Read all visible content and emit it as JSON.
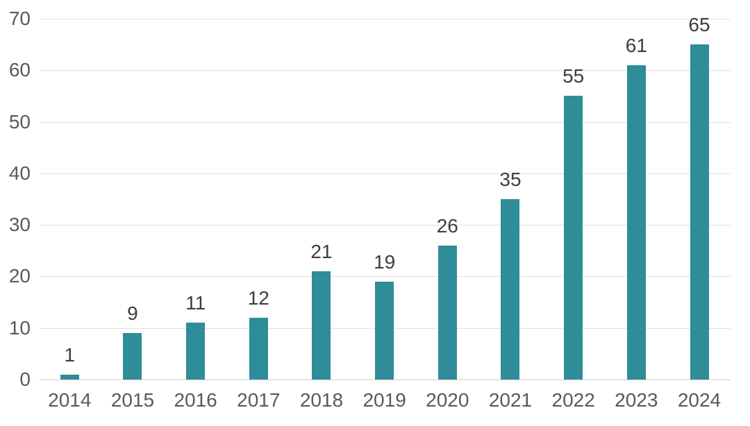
{
  "chart_data": {
    "type": "bar",
    "title": "",
    "xlabel": "",
    "ylabel": "",
    "categories": [
      "2014",
      "2015",
      "2016",
      "2017",
      "2018",
      "2019",
      "2020",
      "2021",
      "2022",
      "2023",
      "2024"
    ],
    "values": [
      1,
      9,
      11,
      12,
      21,
      19,
      26,
      35,
      55,
      61,
      65
    ],
    "ylim": [
      0,
      70
    ],
    "yticks": [
      0,
      10,
      20,
      30,
      40,
      50,
      60,
      70
    ],
    "grid": "horizontal",
    "legend": "none",
    "data_labels_shown": true
  },
  "colors": {
    "bar": "#2f8c99",
    "gridline": "#e0e0e0",
    "axis_line": "#c9ced1",
    "tick_label": "#595959",
    "value_label": "#3d3d3d",
    "background": "#ffffff"
  }
}
